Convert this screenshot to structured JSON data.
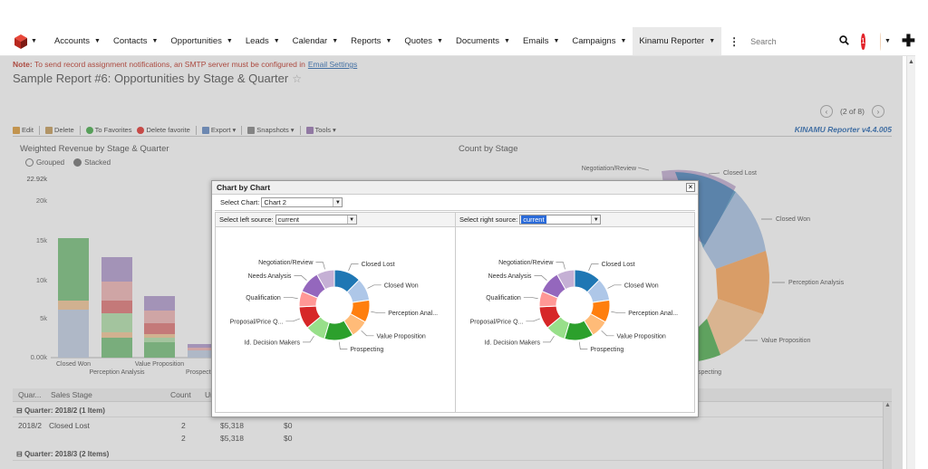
{
  "nav": {
    "items": [
      {
        "label": "Accounts"
      },
      {
        "label": "Contacts"
      },
      {
        "label": "Opportunities"
      },
      {
        "label": "Leads"
      },
      {
        "label": "Calendar"
      },
      {
        "label": "Reports"
      },
      {
        "label": "Quotes"
      },
      {
        "label": "Documents"
      },
      {
        "label": "Emails"
      },
      {
        "label": "Campaigns"
      },
      {
        "label": "Kinamu Reporter",
        "active": true
      }
    ],
    "search_placeholder": "Search",
    "notification_count": "1"
  },
  "page": {
    "note_label": "Note:",
    "note_text": "To send record assignment notifications, an SMTP server must be configured in",
    "note_link": "Email Settings",
    "title": "Sample Report #6: Opportunities by Stage & Quarter",
    "pager_text": "(2 of 8)"
  },
  "toolbar": {
    "edit": "Edit",
    "delete": "Delete",
    "to_favorites": "To Favorites",
    "delete_favorite": "Delete favorite",
    "export": "Export",
    "snapshots": "Snapshots",
    "tools": "Tools",
    "version": "KINAMU Reporter v4.4.005"
  },
  "left_chart": {
    "title": "Weighted Revenue by Stage & Quarter",
    "mode_grouped": "Grouped",
    "mode_stacked": "Stacked",
    "selected_mode": "Stacked",
    "y_max_label": "22.92k",
    "y_ticks": [
      "20k",
      "15k",
      "10k",
      "5k",
      "0.00k"
    ],
    "x_labels_row1": [
      "Closed Won",
      "Value Proposition"
    ],
    "x_labels_row2": [
      "Perception Analysis",
      "Prospect"
    ]
  },
  "right_chart": {
    "title": "Count by Stage",
    "labels": [
      "Negotiation/Review",
      "Closed Lost",
      "Closed Won",
      "Perception Analysis",
      "Value Proposition",
      "specting"
    ]
  },
  "grid": {
    "columns": [
      "Quar...",
      "Sales Stage",
      "Count",
      "Un"
    ],
    "groups": [
      {
        "label": "Quarter: 2018/2 (1 Item)"
      },
      {
        "label": "Quarter: 2018/3 (2 Items)"
      }
    ],
    "rows": [
      {
        "quarter": "2018/2",
        "stage": "Closed Lost",
        "count": "2",
        "amount": "$5,318",
        "weighted": "$0"
      },
      {
        "quarter": "",
        "stage": "",
        "count": "2",
        "amount": "$5,318",
        "weighted": "$0"
      }
    ]
  },
  "dialog": {
    "title": "Chart by Chart",
    "select_chart_label": "Select Chart:",
    "select_chart_value": "Chart 2",
    "left_source_label": "Select left source:",
    "left_source_value": "current",
    "right_source_label": "Select right source:",
    "right_source_value": "current"
  },
  "chart_data": [
    {
      "type": "pie",
      "title": "",
      "categories": [
        "Closed Lost",
        "Closed Won",
        "Perception Analysis",
        "Value Proposition",
        "Prospecting",
        "Id. Decision Makers",
        "Proposal/Price Quote",
        "Qualification",
        "Needs Analysis",
        "Negotiation/Review"
      ],
      "visible_labels": [
        "Closed Lost",
        "Closed Won",
        "Perception Anal...",
        "Value Proposition",
        "Prospecting",
        "Id. Decision Makers",
        "Proposal/Price Q...",
        "Qualification",
        "Needs Analysis",
        "Negotiation/Review"
      ],
      "values": [
        12,
        10,
        10,
        8,
        13,
        9,
        10,
        7,
        10,
        8
      ],
      "colors": [
        "#1f77b4",
        "#aec7e8",
        "#ff7f0e",
        "#ffbb78",
        "#2ca02c",
        "#98df8a",
        "#d62728",
        "#ff9896",
        "#9467bd",
        "#c5b0d5"
      ],
      "donut": true
    },
    {
      "type": "pie",
      "title": "",
      "categories": [
        "Closed Lost",
        "Closed Won",
        "Perception Analysis",
        "Value Proposition",
        "Prospecting",
        "Id. Decision Makers",
        "Proposal/Price Quote",
        "Qualification",
        "Needs Analysis",
        "Negotiation/Review"
      ],
      "visible_labels": [
        "Closed Lost",
        "Closed Won",
        "Perception Anal...",
        "Value Proposition",
        "Prospecting",
        "Id. Decision Makers",
        "Proposal/Price Q...",
        "Qualification",
        "Needs Analysis",
        "Negotiation/Review"
      ],
      "values": [
        12,
        10,
        10,
        8,
        13,
        9,
        10,
        7,
        10,
        8
      ],
      "colors": [
        "#1f77b4",
        "#aec7e8",
        "#ff7f0e",
        "#ffbb78",
        "#2ca02c",
        "#98df8a",
        "#d62728",
        "#ff9896",
        "#9467bd",
        "#c5b0d5"
      ],
      "donut": true
    }
  ]
}
